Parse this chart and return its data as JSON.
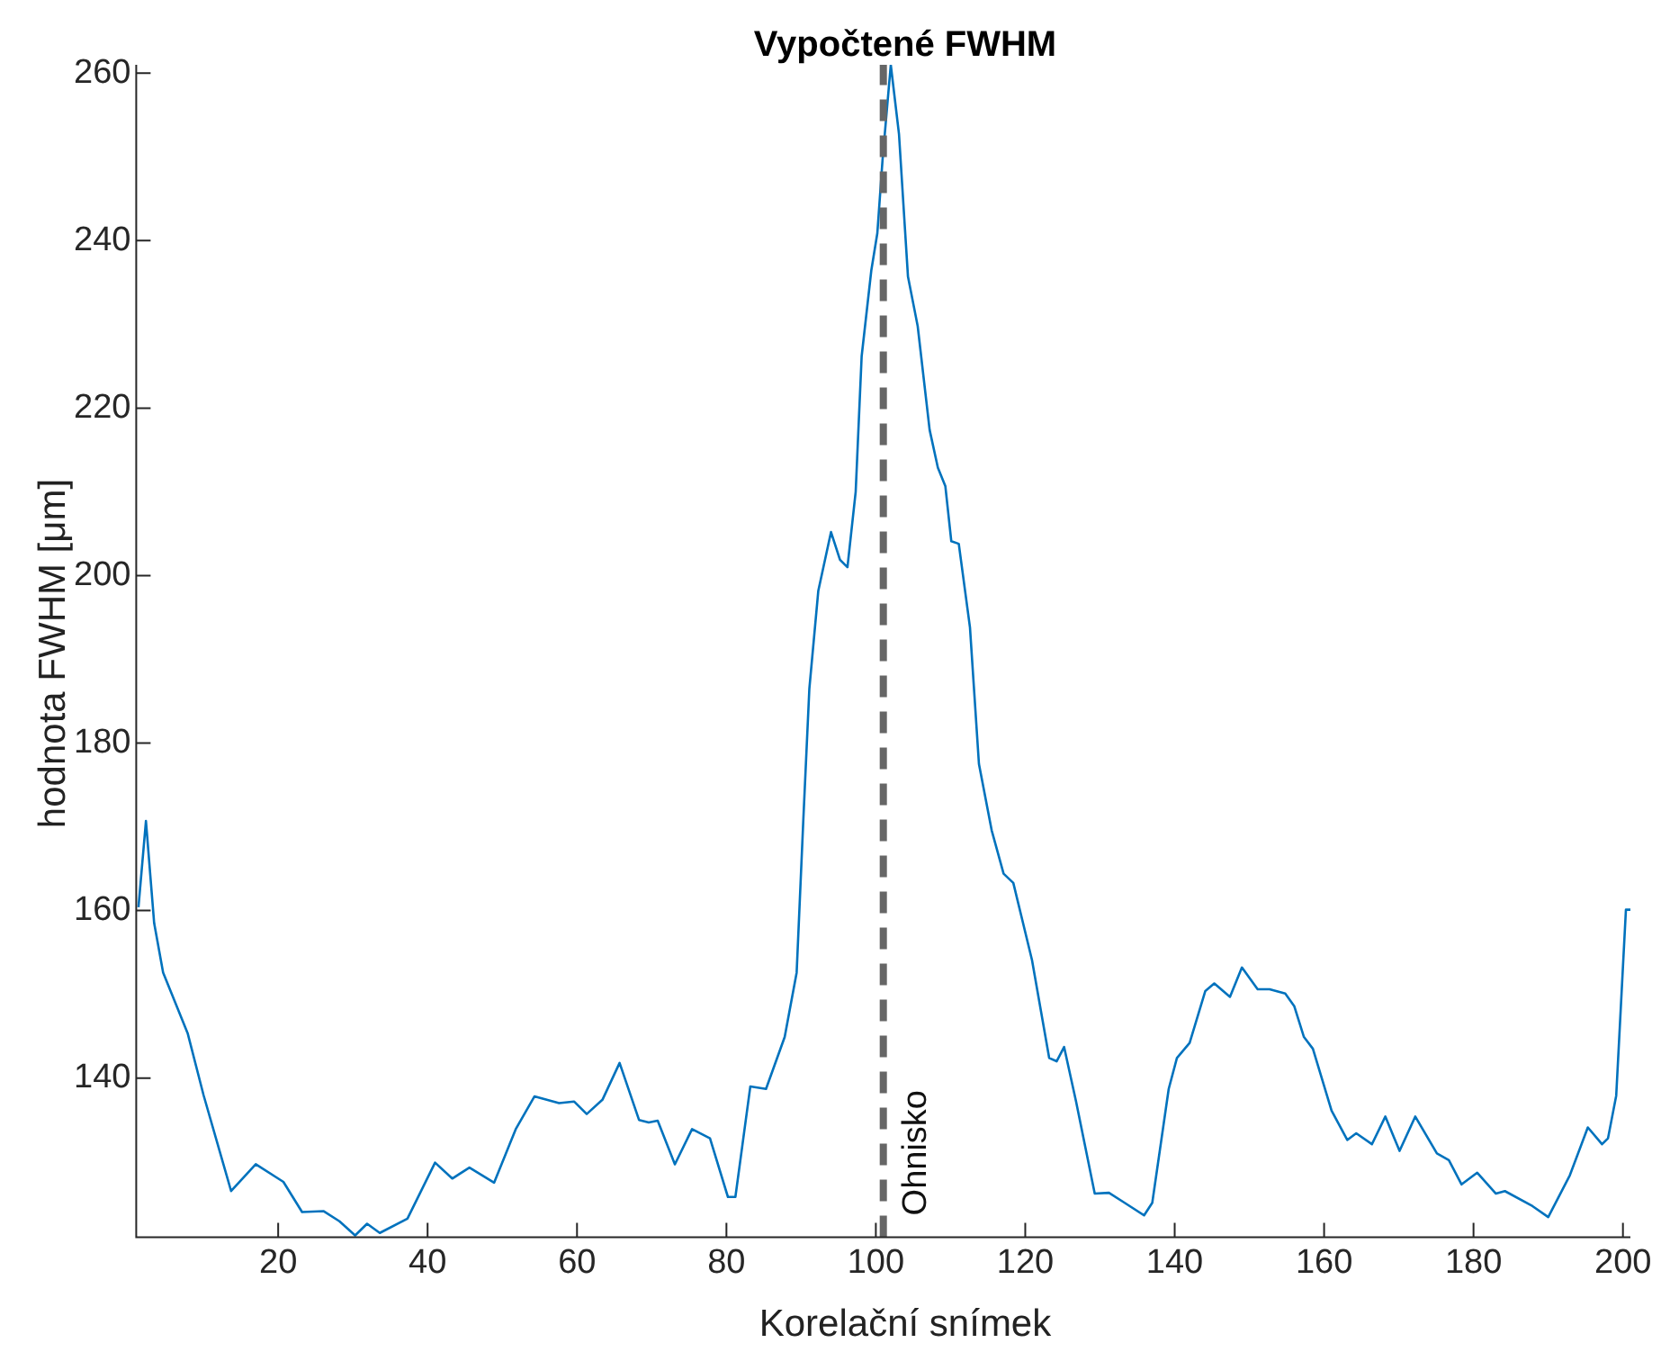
{
  "chart_data": {
    "type": "line",
    "title": "Vypočtené FWHM",
    "xlabel": "Korelační snímek",
    "ylabel": "hodnota FWHM [μm]",
    "xlim": [
      1,
      201
    ],
    "ylim": [
      121,
      261
    ],
    "xticks": [
      20,
      40,
      60,
      80,
      100,
      120,
      140,
      160,
      180,
      200
    ],
    "yticks": [
      140,
      160,
      180,
      200,
      220,
      240,
      260
    ],
    "grid": false,
    "legend": false,
    "marker": "none",
    "line_style": "solid",
    "ref_lines": [
      {
        "axis": "x",
        "value": 101,
        "label": "Ohnisko",
        "color": "#666666",
        "line_style": "dashed"
      }
    ],
    "series": [
      {
        "color": "#0072bd",
        "x": [
          1.3,
          2.3,
          3.4,
          4.6,
          7.9,
          10,
          13.7,
          17,
          20.7,
          23.2,
          26.1,
          28.2,
          30.3,
          31.9,
          33.6,
          37.3,
          41,
          43.3,
          45.6,
          48.9,
          51.8,
          54.3,
          57.6,
          59.6,
          61.3,
          63.4,
          65.7,
          68.3,
          69.6,
          70.8,
          73.1,
          75.4,
          77.8,
          80.2,
          81.2,
          83.2,
          85.3,
          87.8,
          89.4,
          90.3,
          91.1,
          92.3,
          94,
          95.2,
          96.2,
          97.3,
          98.1,
          99.4,
          100.2,
          100.9,
          102,
          103.1,
          104.3,
          105.6,
          107.2,
          108.3,
          109.3,
          110.1,
          111.1,
          112.6,
          113.8,
          115.5,
          117.1,
          118.4,
          120.9,
          123.2,
          124.2,
          125.2,
          126.8,
          129.3,
          131.2,
          133.3,
          135.9,
          137,
          139.2,
          140.3,
          142,
          144.1,
          145.3,
          147.4,
          149,
          151.1,
          152.7,
          154.8,
          156,
          157.3,
          158.5,
          161,
          163.1,
          164.3,
          166.4,
          168.2,
          170.1,
          172.2,
          175.1,
          176.7,
          178.4,
          180.5,
          183,
          184.2,
          187.9,
          190,
          192.9,
          195.3,
          197.2,
          198,
          199.1,
          200.4,
          201
        ],
        "values": [
          160.4,
          170.7,
          158.5,
          152.6,
          145.3,
          138,
          126.5,
          129.7,
          127.6,
          124,
          124.1,
          122.9,
          121.2,
          122.6,
          121.5,
          123.2,
          129.9,
          128,
          129.3,
          127.5,
          133.9,
          137.8,
          137,
          137.2,
          135.7,
          137.4,
          141.8,
          135,
          134.7,
          134.9,
          129.7,
          133.9,
          132.8,
          125.8,
          125.8,
          139,
          138.7,
          144.9,
          152.6,
          171,
          186.5,
          198.2,
          205.2,
          201.9,
          201,
          210,
          226.2,
          236.5,
          240.9,
          249.7,
          261,
          252.7,
          235.7,
          229.8,
          217.4,
          212.9,
          210.7,
          204.1,
          203.8,
          193.8,
          177.5,
          169.6,
          164.4,
          163.3,
          154.1,
          142.4,
          142,
          143.7,
          137.2,
          126.2,
          126.3,
          125.1,
          123.6,
          125.1,
          138.7,
          142.4,
          144.2,
          150.4,
          151.3,
          149.7,
          153.2,
          150.6,
          150.6,
          150.1,
          148.6,
          144.9,
          143.5,
          136.1,
          132.6,
          133.4,
          132.1,
          135.4,
          131.3,
          135.4,
          131,
          130.2,
          127.3,
          128.7,
          126.2,
          126.5,
          124.7,
          123.4,
          128.4,
          134.1,
          132.1,
          132.8,
          137.9,
          160.1,
          160.1
        ]
      }
    ]
  }
}
